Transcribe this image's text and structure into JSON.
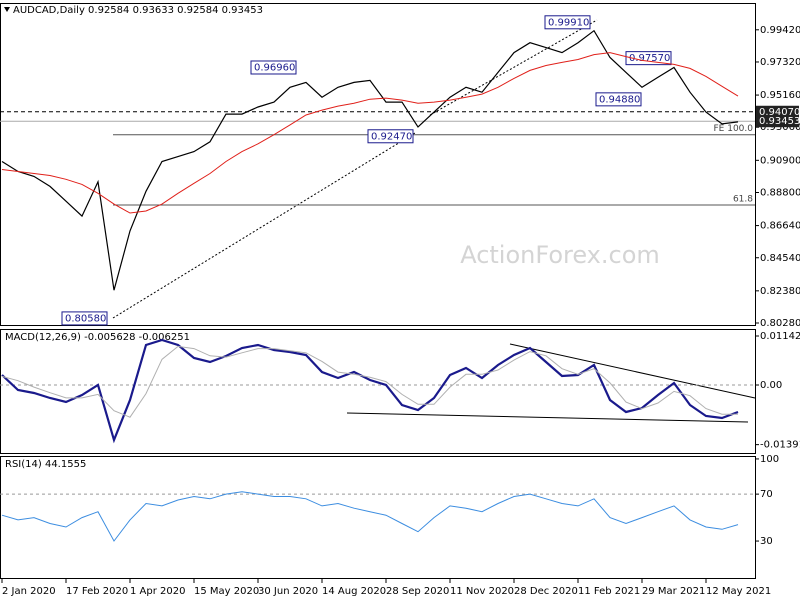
{
  "watermark": "ActionForex.com",
  "chart_data": [
    {
      "type": "line",
      "title": "AUDCAD,Daily 0.92584 0.93633 0.92584 0.93453",
      "categories": [
        "2 Jan 2020",
        null,
        null,
        null,
        "17 Feb 2020",
        null,
        null,
        null,
        "1 Apr 2020",
        null,
        null,
        null,
        "15 May 2020",
        null,
        null,
        null,
        "30 Jun 2020",
        null,
        null,
        null,
        "14 Aug 2020",
        null,
        null,
        null,
        "28 Sep 2020",
        null,
        null,
        null,
        "11 Nov 2020",
        null,
        null,
        null,
        "28 Dec 2020",
        null,
        null,
        null,
        "11 Feb 2021",
        null,
        null,
        null,
        "29 Mar 2021",
        null,
        null,
        null,
        "12 May 2021",
        null,
        null
      ],
      "series": [
        {
          "color": "#000000",
          "values": [
            0.9082,
            0.9017,
            0.8985,
            0.892,
            0.8823,
            0.8726,
            0.895,
            0.8242,
            0.8629,
            0.8888,
            0.9082,
            0.9114,
            0.9147,
            0.9211,
            0.9392,
            0.9392,
            0.9438,
            0.947,
            0.9567,
            0.9599,
            0.9502,
            0.9567,
            0.9599,
            0.9612,
            0.947,
            0.947,
            0.9308,
            0.9405,
            0.9502,
            0.9567,
            0.9535,
            0.9664,
            0.9793,
            0.9858,
            0.9826,
            0.9793,
            0.9858,
            0.9936,
            0.9761,
            0.9664,
            0.9567,
            0.9632,
            0.9696,
            0.9535,
            0.9405,
            0.9328,
            0.9341
          ]
        },
        {
          "color": "#e0201a",
          "values": [
            0.903,
            0.9017,
            0.9004,
            0.8991,
            0.8966,
            0.8933,
            0.8875,
            0.8804,
            0.8746,
            0.8759,
            0.8804,
            0.8875,
            0.894,
            0.9004,
            0.9082,
            0.9147,
            0.9198,
            0.9257,
            0.9321,
            0.9386,
            0.9418,
            0.9444,
            0.9463,
            0.9489,
            0.9496,
            0.9483,
            0.9463,
            0.947,
            0.9483,
            0.9502,
            0.9522,
            0.9567,
            0.9625,
            0.9677,
            0.9709,
            0.9729,
            0.9748,
            0.978,
            0.9793,
            0.9767,
            0.9742,
            0.9729,
            0.9716,
            0.969,
            0.9638,
            0.9573,
            0.9509
          ]
        }
      ],
      "ylim": [
        0.8015,
        1.0117
      ],
      "yticks": [
        {
          "value": 0.9942,
          "label": "0.99420"
        },
        {
          "value": 0.9732,
          "label": "0.97320"
        },
        {
          "value": 0.9516,
          "label": "0.95160"
        },
        {
          "value": 0.9306,
          "label": "0.93060"
        },
        {
          "value": 0.909,
          "label": "0.90900"
        },
        {
          "value": 0.888,
          "label": "0.88800"
        },
        {
          "value": 0.8664,
          "label": "0.86640"
        },
        {
          "value": 0.8454,
          "label": "0.84540"
        },
        {
          "value": 0.8238,
          "label": "0.82380"
        },
        {
          "value": 0.8028,
          "label": "0.80280"
        }
      ],
      "annotations": [
        {
          "value": 0.9991,
          "label": "0.99910"
        },
        {
          "value": 0.9757,
          "label": "0.97570"
        },
        {
          "value": 0.9696,
          "label": "0.96960"
        },
        {
          "value": 0.9488,
          "label": "0.94880"
        },
        {
          "value": 0.9247,
          "label": "0.92470"
        },
        {
          "value": 0.8058,
          "label": "0.80580"
        }
      ],
      "levels": [
        {
          "value": 0.9407,
          "label": "0.94070",
          "line": "dashed"
        },
        {
          "value": 0.93453,
          "label": "0.93453",
          "line": "current"
        },
        {
          "value": 0.9257,
          "label": "FE 100.0",
          "line": "solid"
        },
        {
          "value": 0.8798,
          "label": "61.8",
          "line": "solid"
        }
      ]
    },
    {
      "type": "line",
      "title": "MACD(12,26,9) -0.005628 -0.006251",
      "series": [
        {
          "color": "#1a1a8c",
          "values": [
            0.00233,
            -0.00117,
            -0.00187,
            -0.00303,
            -0.00396,
            -0.00233,
            0,
            -0.01283,
            -0.0035,
            0.00933,
            0.01049,
            0.00933,
            0.0063,
            0.00536,
            0.00676,
            0.00863,
            0.00933,
            0.00816,
            0.0077,
            0.007,
            0.00303,
            0.00163,
            0.00303,
            0.00117,
            0,
            -0.00466,
            -0.00583,
            -0.00303,
            0.00233,
            0.00396,
            0.00163,
            0.00466,
            0.007,
            0.00863,
            0.00536,
            0.0021,
            0.00233,
            0.00466,
            -0.0035,
            -0.0063,
            -0.00536,
            -0.00233,
            0.00047,
            -0.00466,
            -0.00723,
            -0.0077,
            -0.0063
          ]
        },
        {
          "color": "#b0b0b0",
          "values": [
            0.002,
            0.001,
            -0.0005,
            -0.0018,
            -0.003,
            -0.003,
            -0.0022,
            -0.006,
            -0.0075,
            -0.002,
            0.006,
            0.009,
            0.0085,
            0.0068,
            0.0065,
            0.0075,
            0.0085,
            0.0085,
            0.008,
            0.0075,
            0.0055,
            0.003,
            0.0025,
            0.0018,
            0.0008,
            -0.0022,
            -0.0045,
            -0.0045,
            -0.0005,
            0.0025,
            0.0025,
            0.0035,
            0.0058,
            0.0078,
            0.0068,
            0.0038,
            0.0025,
            0.0038,
            0.0005,
            -0.004,
            -0.0055,
            -0.0042,
            -0.0015,
            -0.0025,
            -0.0055,
            -0.0068,
            -0.0068
          ]
        }
      ],
      "ylim": [
        -0.01586,
        0.01306
      ],
      "yticks": [
        0.011427,
        {
          "value": 0,
          "label": "0.00"
        },
        -0.01391
      ]
    },
    {
      "type": "line",
      "title": "RSI(14) 44.1555",
      "series": [
        {
          "color": "#3c8de0",
          "values": [
            52,
            48,
            50,
            45,
            42,
            50,
            55,
            30,
            48,
            62,
            60,
            65,
            68,
            66,
            70,
            72,
            70,
            68,
            68,
            66,
            60,
            62,
            58,
            55,
            52,
            45,
            38,
            50,
            60,
            58,
            55,
            62,
            68,
            70,
            66,
            62,
            60,
            66,
            50,
            45,
            50,
            55,
            60,
            48,
            42,
            40,
            44
          ]
        }
      ],
      "ylim": [
        -1.5,
        102.5
      ],
      "yticks": [
        100,
        70,
        30
      ]
    }
  ]
}
